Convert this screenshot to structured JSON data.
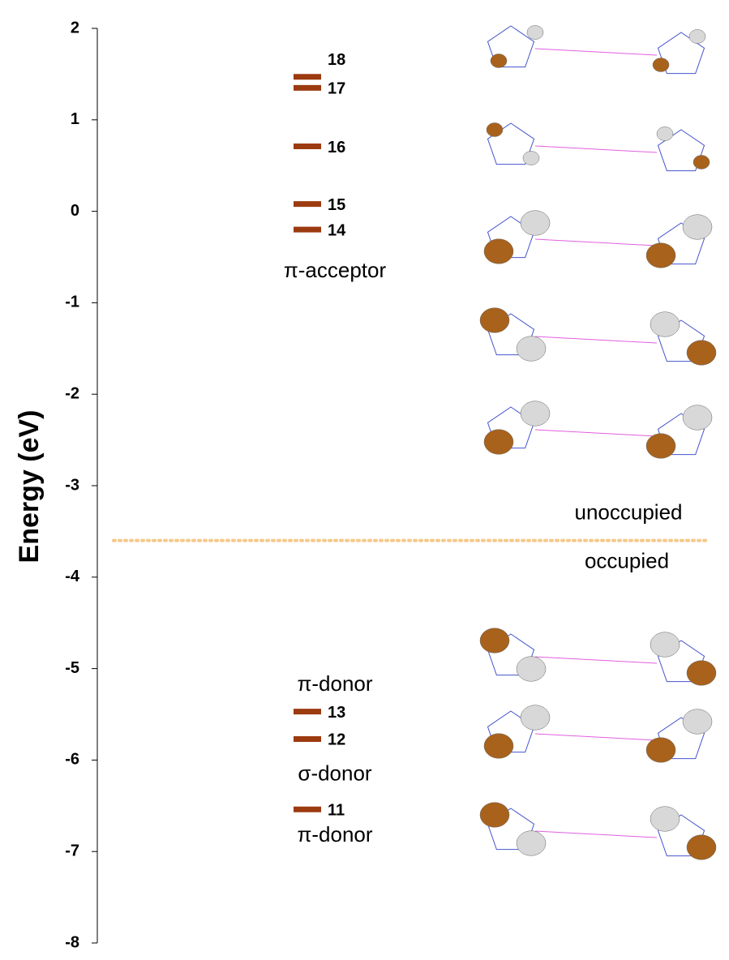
{
  "chart_data": {
    "type": "levels",
    "ylabel": "Energy (eV)",
    "ylim": [
      -8,
      2
    ],
    "yticks": [
      -8,
      -7,
      -6,
      -5,
      -4,
      -3,
      -2,
      -1,
      0,
      1,
      2
    ],
    "color": "#9c3a10",
    "levels": [
      {
        "name": "18",
        "value": 1.47
      },
      {
        "name": "17",
        "value": 1.35
      },
      {
        "name": "16",
        "value": 0.71
      },
      {
        "name": "15",
        "value": 0.08
      },
      {
        "name": "14",
        "value": -0.2
      },
      {
        "name": "13",
        "value": -5.47
      },
      {
        "name": "12",
        "value": -5.77
      },
      {
        "name": "11",
        "value": -6.54
      }
    ],
    "annotations": [
      {
        "text": "π-acceptor",
        "value": -0.66
      },
      {
        "text": "π-donor",
        "value": -5.18
      },
      {
        "text": "σ-donor",
        "value": -6.16
      },
      {
        "text": "π-donor",
        "value": -6.83
      }
    ],
    "separator": {
      "value": -3.6,
      "above_label": "unoccupied",
      "below_label": "occupied",
      "color": "#f5c98a"
    }
  }
}
